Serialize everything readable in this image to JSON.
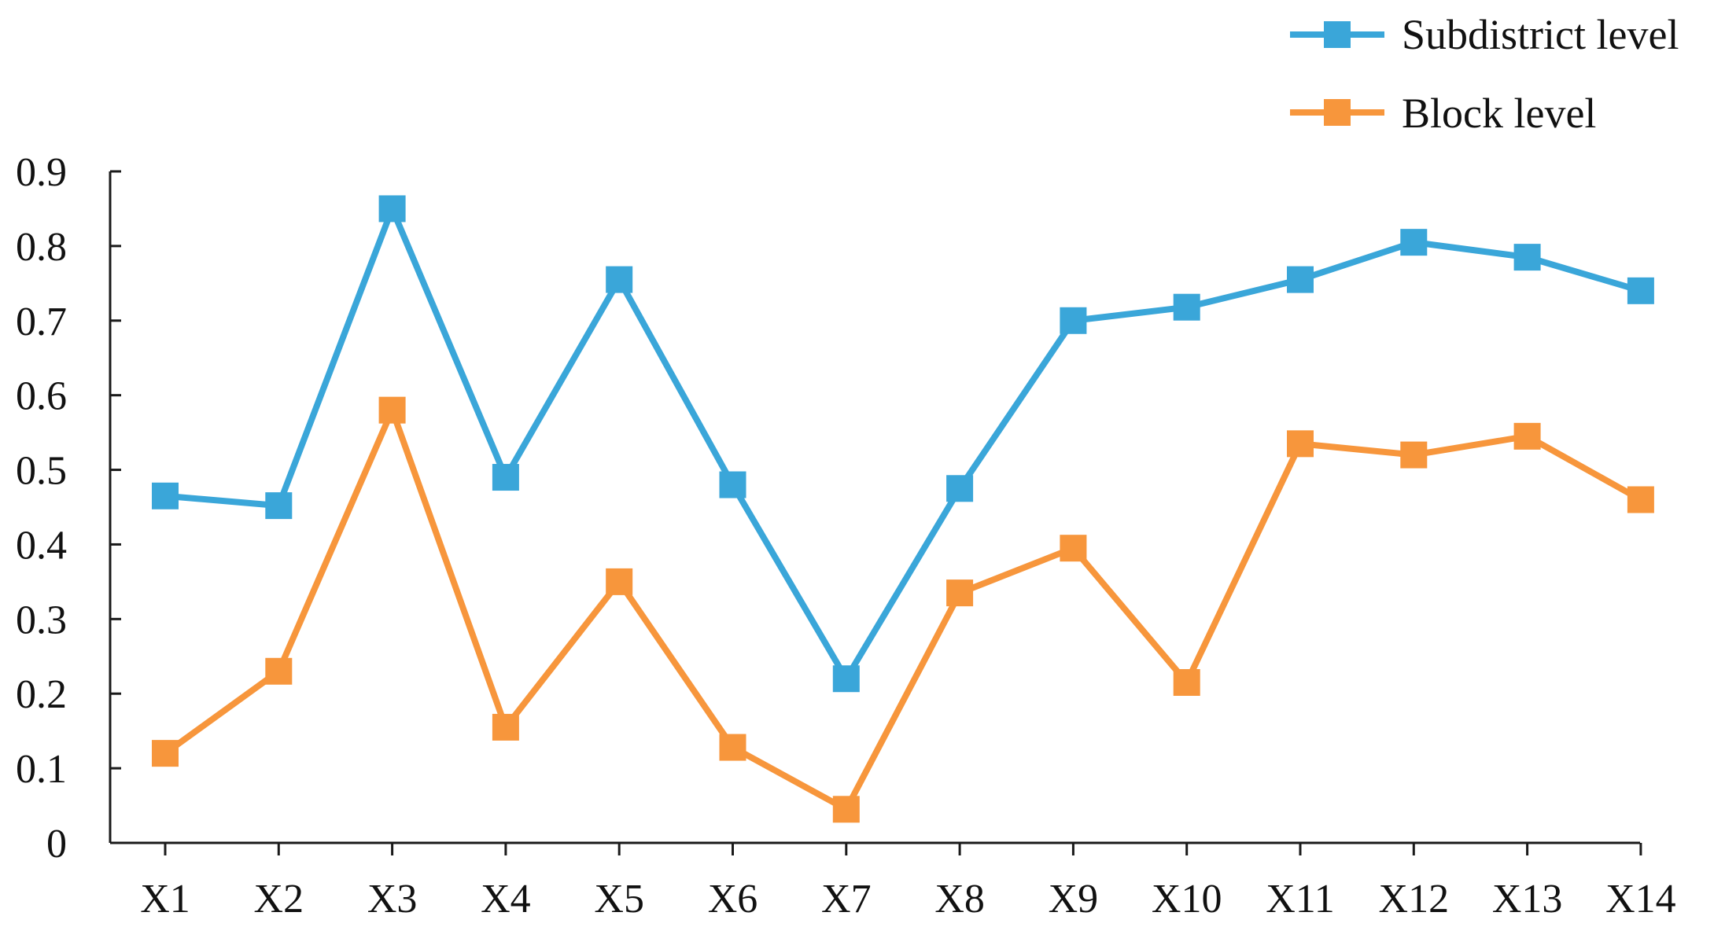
{
  "colors": {
    "subdistrict": "#3aa6d9",
    "block": "#f7963c",
    "axis": "#1a1a1a"
  },
  "chart_data": {
    "type": "line",
    "title": "",
    "xlabel": "",
    "ylabel": "",
    "categories": [
      "X1",
      "X2",
      "X3",
      "X4",
      "X5",
      "X6",
      "X7",
      "X8",
      "X9",
      "X10",
      "X11",
      "X12",
      "X13",
      "X14"
    ],
    "ylim": [
      0,
      0.9
    ],
    "yticks": [
      0,
      0.1,
      0.2,
      0.3,
      0.4,
      0.5,
      0.6,
      0.7,
      0.8,
      0.9
    ],
    "ytick_labels": [
      "0",
      "0.1",
      "0.2",
      "0.3",
      "0.4",
      "0.5",
      "0.6",
      "0.7",
      "0.8",
      "0.9"
    ],
    "grid": false,
    "legend_position": "top-right",
    "marker": "square",
    "series": [
      {
        "name": "Subdistrict level",
        "color": "#3aa6d9",
        "values": [
          0.465,
          0.452,
          0.85,
          0.49,
          0.755,
          0.48,
          0.22,
          0.475,
          0.7,
          0.718,
          0.755,
          0.805,
          0.785,
          0.74
        ]
      },
      {
        "name": "Block level",
        "color": "#f7963c",
        "values": [
          0.12,
          0.23,
          0.58,
          0.155,
          0.35,
          0.128,
          0.045,
          0.335,
          0.395,
          0.215,
          0.535,
          0.52,
          0.545,
          0.46
        ]
      }
    ]
  }
}
